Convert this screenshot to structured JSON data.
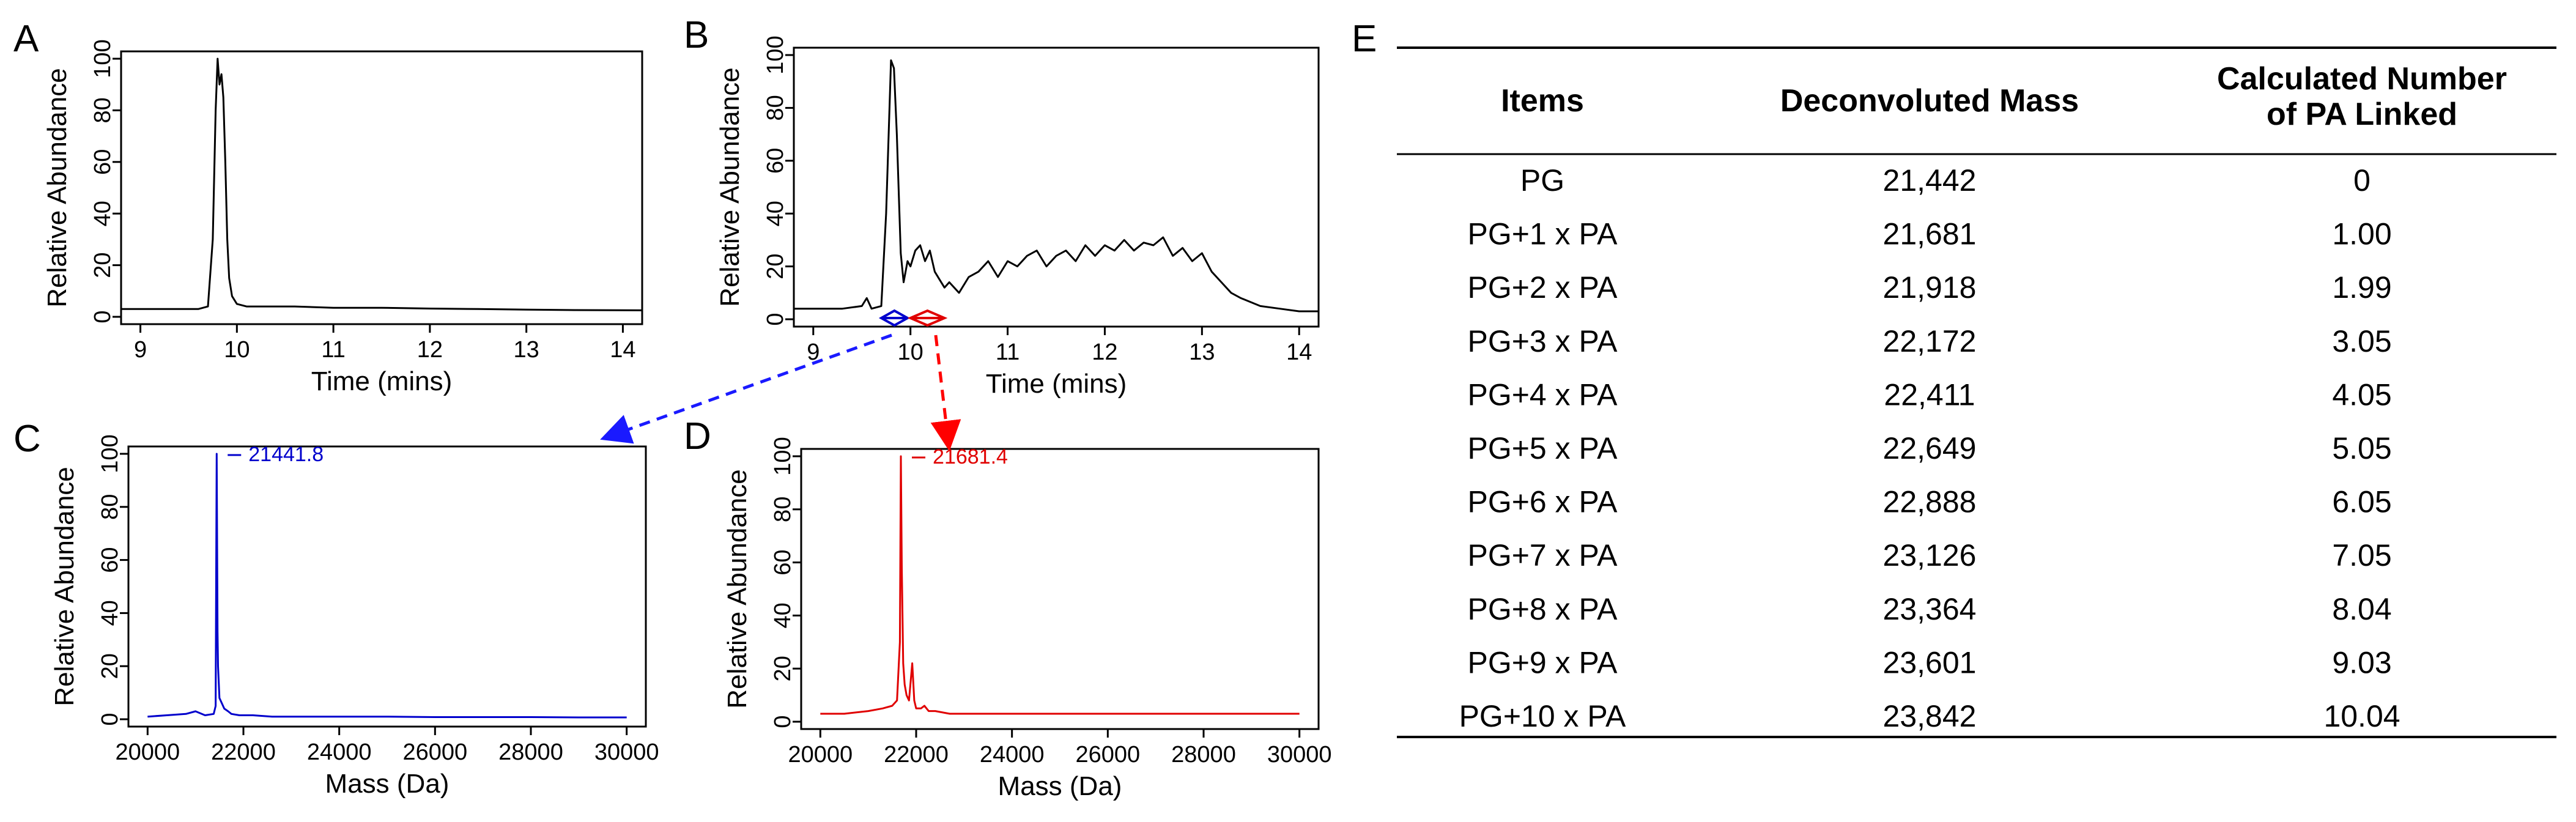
{
  "panel_letters": {
    "a": "A",
    "b": "B",
    "c": "C",
    "d": "D",
    "e": "E"
  },
  "colors": {
    "black": "#000000",
    "blue": "#0000cc",
    "red": "#e00000",
    "arrow_blue": "#1a1aff",
    "arrow_red": "#ff0000"
  },
  "chart_data": [
    {
      "id": "A",
      "type": "line",
      "title": "",
      "xlabel": "Time (mins)",
      "ylabel": "Relative Abundance",
      "xlim": [
        8.8,
        14.2
      ],
      "ylim": [
        0,
        100
      ],
      "x_ticks": [
        9,
        10,
        11,
        12,
        13,
        14
      ],
      "x_tick_labels": [
        "9",
        "10",
        "11",
        "12",
        "13",
        "14"
      ],
      "y_ticks": [
        0,
        20,
        40,
        60,
        80,
        100
      ],
      "y_tick_labels": [
        "0",
        "20",
        "40",
        "60",
        "80",
        "100"
      ],
      "series": [
        {
          "name": "chromatogram",
          "x": [
            8.8,
            9.2,
            9.6,
            9.7,
            9.75,
            9.78,
            9.8,
            9.82,
            9.84,
            9.86,
            9.88,
            9.9,
            9.92,
            9.95,
            10.0,
            10.1,
            10.3,
            10.6,
            11,
            11.5,
            12,
            12.5,
            13,
            13.5,
            14.2
          ],
          "y": [
            3,
            3,
            3,
            4,
            30,
            80,
            100,
            90,
            94,
            85,
            60,
            30,
            15,
            8,
            5,
            4,
            4,
            4,
            3.5,
            3.5,
            3.2,
            3,
            2.8,
            2.6,
            2.5
          ]
        }
      ]
    },
    {
      "id": "B",
      "type": "line",
      "title": "",
      "xlabel": "Time (mins)",
      "ylabel": "Relative Abundance",
      "xlim": [
        8.8,
        14.2
      ],
      "ylim": [
        0,
        100
      ],
      "x_ticks": [
        9,
        10,
        11,
        12,
        13,
        14
      ],
      "x_tick_labels": [
        "9",
        "10",
        "11",
        "12",
        "13",
        "14"
      ],
      "y_ticks": [
        0,
        20,
        40,
        60,
        80,
        100
      ],
      "y_tick_labels": [
        "0",
        "20",
        "40",
        "60",
        "80",
        "100"
      ],
      "series": [
        {
          "name": "chromatogram",
          "x": [
            8.8,
            9.3,
            9.5,
            9.55,
            9.6,
            9.7,
            9.75,
            9.8,
            9.83,
            9.86,
            9.9,
            9.93,
            9.97,
            10.0,
            10.05,
            10.1,
            10.15,
            10.2,
            10.25,
            10.3,
            10.35,
            10.4,
            10.5,
            10.6,
            10.7,
            10.8,
            10.9,
            11.0,
            11.1,
            11.2,
            11.3,
            11.4,
            11.5,
            11.6,
            11.7,
            11.8,
            11.9,
            12.0,
            12.1,
            12.2,
            12.3,
            12.4,
            12.5,
            12.6,
            12.7,
            12.8,
            12.9,
            13.0,
            13.1,
            13.2,
            13.3,
            13.4,
            13.6,
            13.8,
            14.0,
            14.2
          ],
          "y": [
            4,
            4,
            5,
            8,
            4,
            5,
            40,
            98,
            95,
            70,
            25,
            14,
            22,
            20,
            26,
            28,
            22,
            26,
            18,
            15,
            12,
            14,
            10,
            16,
            18,
            22,
            16,
            22,
            20,
            24,
            26,
            20,
            24,
            26,
            22,
            28,
            24,
            28,
            26,
            30,
            26,
            29,
            28,
            31,
            24,
            27,
            22,
            25,
            18,
            14,
            10,
            8,
            5,
            4,
            3,
            3
          ]
        }
      ],
      "markers": [
        {
          "color": "blue",
          "x_start": 9.7,
          "x_end": 9.97
        },
        {
          "color": "red",
          "x_start": 10.0,
          "x_end": 10.35
        }
      ]
    },
    {
      "id": "C",
      "type": "line",
      "title": "",
      "xlabel": "Mass (Da)",
      "ylabel": "Relative Abundance",
      "xlim": [
        19600,
        30400
      ],
      "ylim": [
        0,
        100
      ],
      "x_ticks": [
        20000,
        22000,
        24000,
        26000,
        28000,
        30000
      ],
      "x_tick_labels": [
        "20000",
        "22000",
        "24000",
        "26000",
        "28000",
        "30000"
      ],
      "y_ticks": [
        0,
        20,
        40,
        60,
        80,
        100
      ],
      "y_tick_labels": [
        "0",
        "20",
        "40",
        "60",
        "80",
        "100"
      ],
      "series": [
        {
          "name": "deconvoluted spectrum",
          "x": [
            20000,
            20400,
            20800,
            21000,
            21200,
            21380,
            21420,
            21441.8,
            21460,
            21470,
            21500,
            21550,
            21600,
            21681,
            21750,
            21918,
            22200,
            22600,
            23000,
            24000,
            25000,
            26000,
            27000,
            28000,
            29000,
            30000
          ],
          "y": [
            1,
            1.5,
            2,
            3,
            1.5,
            2,
            5,
            100,
            33,
            20,
            8,
            6,
            4,
            3,
            2,
            1.5,
            1.5,
            1,
            1,
            1,
            1,
            0.8,
            0.8,
            0.8,
            0.7,
            0.7
          ]
        }
      ],
      "peak_label": {
        "x": 21441.8,
        "y": 100,
        "text": "21441.8"
      }
    },
    {
      "id": "D",
      "type": "line",
      "title": "",
      "xlabel": "Mass (Da)",
      "ylabel": "Relative Abundance",
      "xlim": [
        19600,
        30400
      ],
      "ylim": [
        0,
        100
      ],
      "x_ticks": [
        20000,
        22000,
        24000,
        26000,
        28000,
        30000
      ],
      "x_tick_labels": [
        "20000",
        "22000",
        "24000",
        "26000",
        "28000",
        "30000"
      ],
      "y_ticks": [
        0,
        20,
        40,
        60,
        80,
        100
      ],
      "y_tick_labels": [
        "0",
        "20",
        "40",
        "60",
        "80",
        "100"
      ],
      "series": [
        {
          "name": "deconvoluted spectrum",
          "x": [
            20000,
            20500,
            21000,
            21300,
            21500,
            21600,
            21660,
            21681.4,
            21700,
            21730,
            21760,
            21800,
            21850,
            21918,
            21960,
            22000,
            22100,
            22172,
            22260,
            22400,
            22700,
            23000,
            24000,
            25000,
            26000,
            27000,
            28000,
            29000,
            30000
          ],
          "y": [
            3,
            3,
            4,
            5,
            6,
            8,
            30,
            100,
            58,
            22,
            14,
            10,
            8,
            22,
            8,
            5,
            5,
            6,
            4,
            4,
            3,
            3,
            3,
            3,
            3,
            3,
            3,
            3,
            3
          ]
        }
      ],
      "peak_label": {
        "x": 21681.4,
        "y": 100,
        "text": "21681.4"
      }
    },
    {
      "id": "E",
      "type": "table",
      "columns": [
        "Items",
        "Deconvoluted Mass",
        "Calculated Number of PA Linked"
      ],
      "column_header_lines": [
        [
          "Items"
        ],
        [
          "Deconvoluted Mass"
        ],
        [
          "Calculated Number",
          "of PA Linked"
        ]
      ],
      "rows": [
        [
          "PG",
          "21,442",
          "0"
        ],
        [
          "PG+1 x PA",
          "21,681",
          "1.00"
        ],
        [
          "PG+2 x PA",
          "21,918",
          "1.99"
        ],
        [
          "PG+3 x PA",
          "22,172",
          "3.05"
        ],
        [
          "PG+4 x PA",
          "22,411",
          "4.05"
        ],
        [
          "PG+5 x PA",
          "22,649",
          "5.05"
        ],
        [
          "PG+6 x PA",
          "22,888",
          "6.05"
        ],
        [
          "PG+7 x PA",
          "23,126",
          "7.05"
        ],
        [
          "PG+8 x PA",
          "23,364",
          "8.04"
        ],
        [
          "PG+9 x PA",
          "23,601",
          "9.03"
        ],
        [
          "PG+10 x PA",
          "23,842",
          "10.04"
        ]
      ]
    }
  ]
}
